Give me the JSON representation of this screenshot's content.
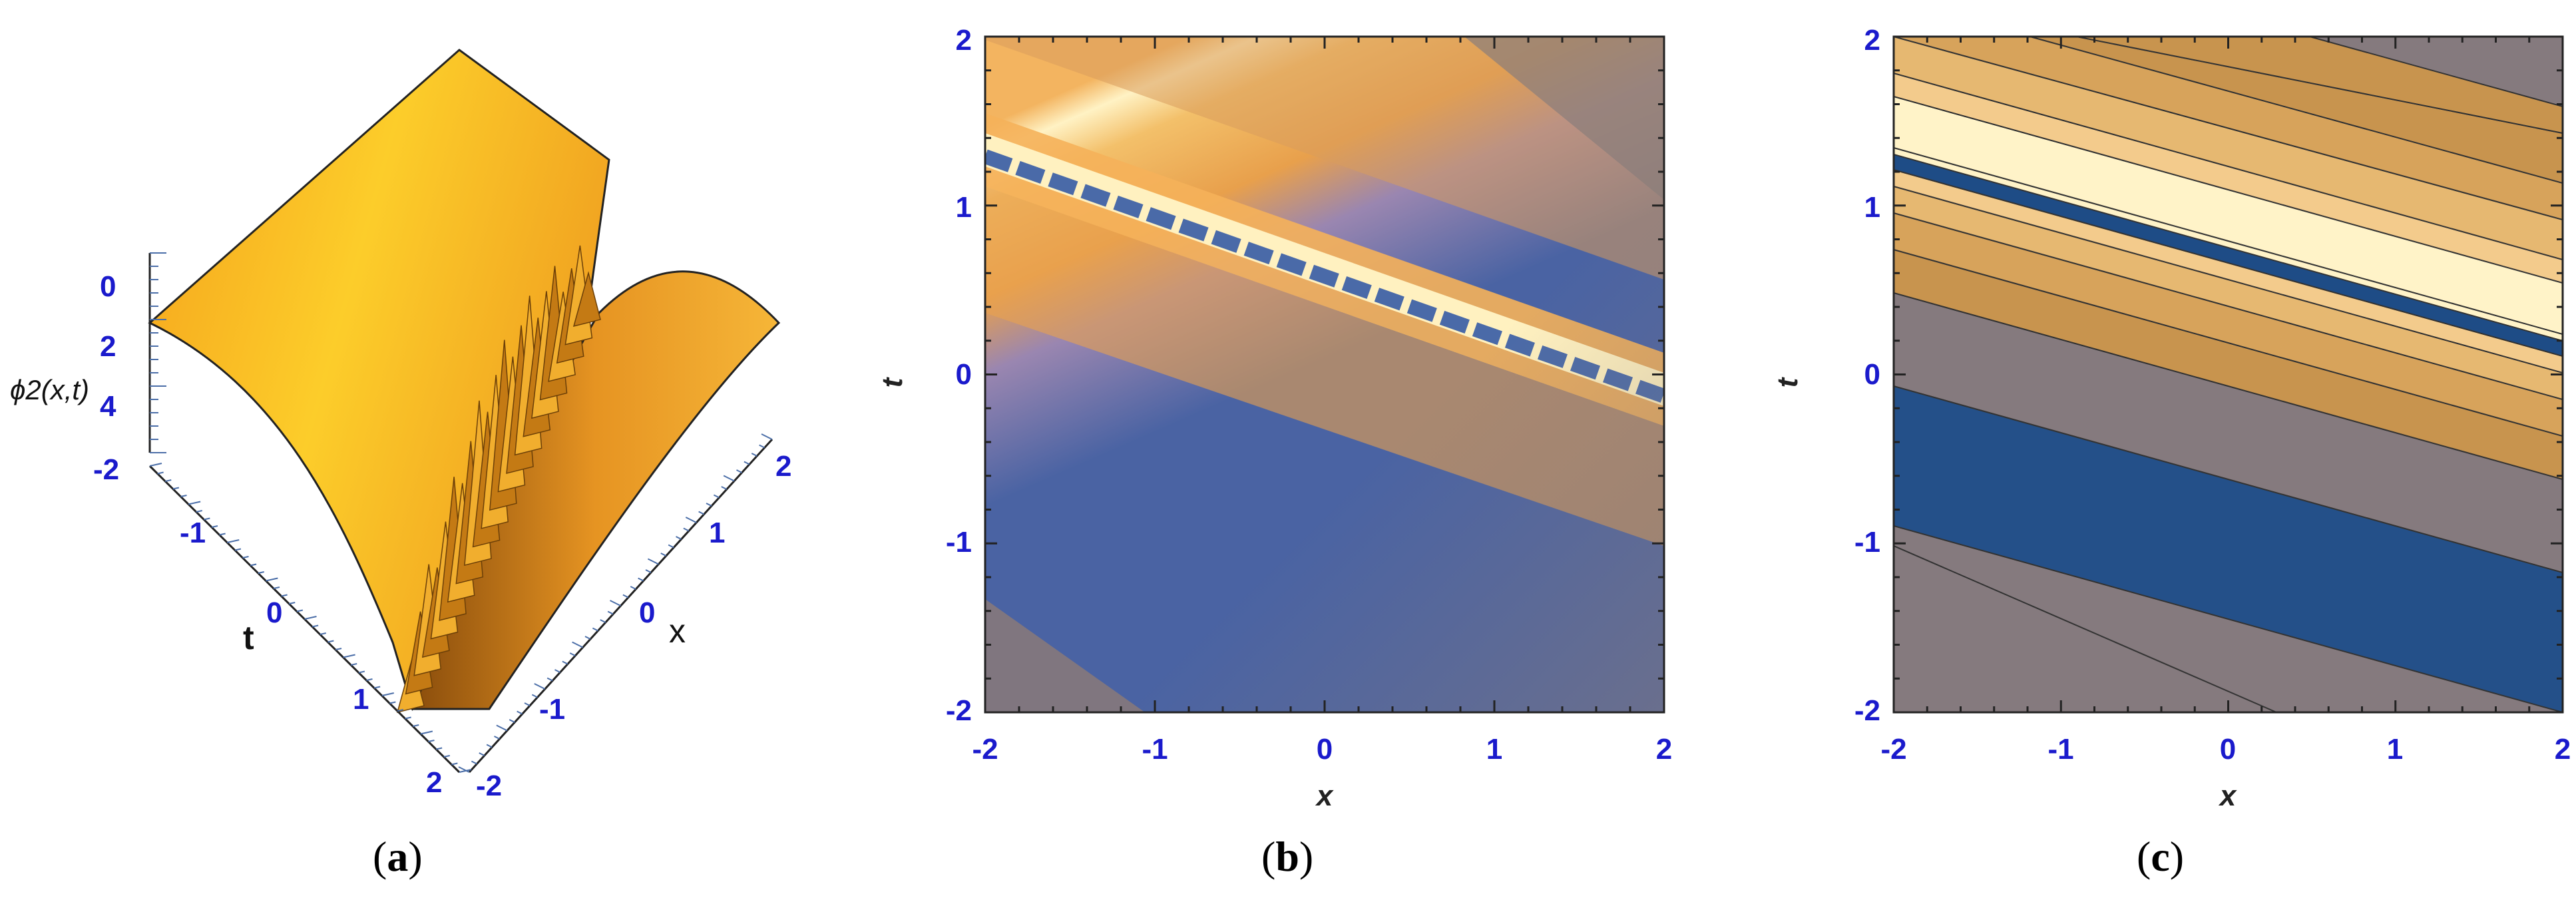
{
  "panels": [
    {
      "id": "a",
      "caption": "a",
      "type": "surface3d",
      "zlabel": "ϕ2(x,t)",
      "xlabel": "x",
      "ylabel": "t",
      "z_ticks": [
        "0",
        "2",
        "4"
      ],
      "t_ticks": [
        "-2",
        "-1",
        "0",
        "1",
        "2"
      ],
      "x_ticks": [
        "-2",
        "-1",
        "0",
        "1",
        "2"
      ],
      "color": "#f5a623"
    },
    {
      "id": "b",
      "caption": "b",
      "type": "heatmap",
      "xlabel": "x",
      "ylabel": "t",
      "x_ticks": [
        "-2",
        "-1",
        "0",
        "1",
        "2"
      ],
      "t_ticks": [
        "-2",
        "-1",
        "0",
        "1",
        "2"
      ]
    },
    {
      "id": "c",
      "caption": "c",
      "type": "contour",
      "xlabel": "x",
      "ylabel": "t",
      "x_ticks": [
        "-2",
        "-1",
        "0",
        "1",
        "2"
      ],
      "t_ticks": [
        "-2",
        "-1",
        "0",
        "1",
        "2"
      ]
    }
  ],
  "chart_data": [
    {
      "type": "surface3d",
      "panel": "a",
      "xlim": [
        -2,
        2
      ],
      "ylim": [
        -2,
        2
      ],
      "zlim": [
        0,
        5
      ],
      "ridge": {
        "x": [
          -2,
          2
        ],
        "t": [
          1.3,
          -0.15
        ]
      },
      "colors": [
        "#f8b436",
        "#e08a1c",
        "#a65e10"
      ]
    },
    {
      "type": "heatmap",
      "panel": "b",
      "xlim": [
        -2,
        2
      ],
      "ylim": [
        -2,
        2
      ],
      "ridge": {
        "x": [
          -2,
          2
        ],
        "t": [
          1.3,
          -0.15
        ]
      },
      "colors": {
        "low": "#4a63a3",
        "mid": "#e8a04c",
        "high": "#fff2c4",
        "corner": "#8a7b78"
      }
    },
    {
      "type": "contour",
      "panel": "c",
      "xlim": [
        -2,
        2
      ],
      "ylim": [
        -2,
        2
      ],
      "ridge": {
        "x": [
          -2,
          2
        ],
        "t": [
          1.3,
          -0.15
        ]
      },
      "colors": [
        "#245089",
        "#857a7e",
        "#c8944e",
        "#d7a35b",
        "#e6b871",
        "#f3cb8c",
        "#fff3c8"
      ]
    }
  ]
}
